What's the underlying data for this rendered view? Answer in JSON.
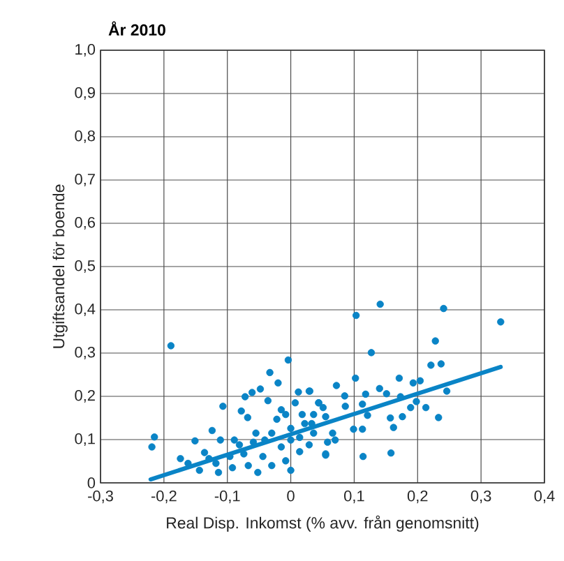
{
  "chart_data": {
    "type": "scatter",
    "title": "**År 2010**",
    "xlabel": "Real Disp. Inkomst (% avv. från genomsnitt)",
    "ylabel": "Utgiftsandel för boende",
    "xlim": [
      -0.3,
      0.4
    ],
    "ylim": [
      0,
      1.0
    ],
    "xticks": [
      {
        "value": -0.3,
        "label": "-0,3"
      },
      {
        "value": -0.2,
        "label": "-0,2"
      },
      {
        "value": -0.1,
        "label": "-0,1"
      },
      0,
      {
        "value": 0.1,
        "label": "0,1"
      },
      {
        "value": 0.2,
        "label": "0,2"
      },
      {
        "value": 0.3,
        "label": "0,3"
      },
      {
        "value": 0.4,
        "label": "0,4"
      }
    ],
    "yticks": [
      0,
      {
        "value": 0.1,
        "label": "0,1"
      },
      {
        "value": 0.2,
        "label": "0,2"
      },
      {
        "value": 0.3,
        "label": "0,3"
      },
      {
        "value": 0.4,
        "label": "0,4"
      },
      {
        "value": 0.5,
        "label": "0,5"
      },
      {
        "value": 0.6,
        "label": "0,6"
      },
      {
        "value": 0.7,
        "label": "0,7"
      },
      {
        "value": 0.8,
        "label": "0,8"
      },
      {
        "value": 0.9,
        "label": "0,9"
      },
      {
        "value": 1.0,
        "label": "1,0"
      }
    ],
    "grid": true,
    "series": [
      {
        "color": "#0a84c6",
        "marker": "circle",
        "x": [
          -0.189,
          -0.215,
          -0.219,
          -0.004,
          -0.033,
          -0.02,
          -0.048,
          -0.061,
          -0.072,
          0.012,
          0.029,
          -0.107,
          -0.078,
          -0.068,
          -0.036,
          -0.124,
          -0.151,
          -0.174,
          -0.136,
          -0.111,
          -0.089,
          -0.144,
          -0.114,
          -0.092,
          -0.052,
          0.0,
          0.044,
          0.051,
          -0.015,
          0.007,
          -0.022,
          -0.055,
          -0.03,
          0.0,
          0.022,
          0.036,
          0.058,
          0.055,
          0.014,
          -0.015,
          -0.044,
          -0.074,
          -0.096,
          -0.118,
          -0.067,
          -0.03,
          -0.008,
          -0.059,
          -0.081,
          0.014,
          0.029,
          -0.041,
          0.0,
          -0.008,
          0.018,
          0.036,
          -0.162,
          -0.129,
          0.103,
          0.141,
          0.241,
          0.331,
          0.228,
          0.127,
          0.221,
          0.237,
          0.072,
          0.102,
          0.171,
          0.193,
          0.204,
          0.14,
          0.151,
          0.085,
          0.118,
          0.173,
          0.246,
          0.198,
          0.213,
          0.189,
          0.086,
          0.113,
          0.121,
          0.157,
          0.176,
          0.233,
          0.162,
          0.099,
          0.113,
          0.114,
          0.158,
          0.03,
          0.044,
          0.055,
          0.066,
          0.07,
          0.055,
          0.033
        ],
        "values": [
          0.317,
          0.106,
          0.083,
          0.284,
          0.255,
          0.231,
          0.217,
          0.209,
          0.199,
          0.21,
          0.212,
          0.177,
          0.166,
          0.151,
          0.19,
          0.121,
          0.097,
          0.056,
          0.07,
          0.099,
          0.099,
          0.029,
          0.024,
          0.035,
          0.024,
          0.029,
          0.185,
          0.174,
          0.169,
          0.185,
          0.147,
          0.115,
          0.115,
          0.126,
          0.137,
          0.115,
          0.094,
          0.067,
          0.072,
          0.083,
          0.061,
          0.067,
          0.061,
          0.045,
          0.04,
          0.04,
          0.051,
          0.094,
          0.088,
          0.105,
          0.088,
          0.099,
          0.099,
          0.158,
          0.158,
          0.158,
          0.045,
          0.056,
          0.387,
          0.413,
          0.403,
          0.372,
          0.328,
          0.301,
          0.272,
          0.275,
          0.225,
          0.242,
          0.242,
          0.231,
          0.236,
          0.218,
          0.206,
          0.201,
          0.205,
          0.199,
          0.212,
          0.188,
          0.174,
          0.174,
          0.177,
          0.182,
          0.156,
          0.15,
          0.153,
          0.151,
          0.128,
          0.124,
          0.124,
          0.061,
          0.069,
          0.212,
          0.185,
          0.153,
          0.115,
          0.099,
          0.064,
          0.137
        ]
      },
      {
        "type": "line",
        "color": "#0a84c6",
        "marker": "none",
        "x": [
          -0.221,
          0.331
        ],
        "values": [
          0.008,
          0.268
        ]
      }
    ]
  }
}
